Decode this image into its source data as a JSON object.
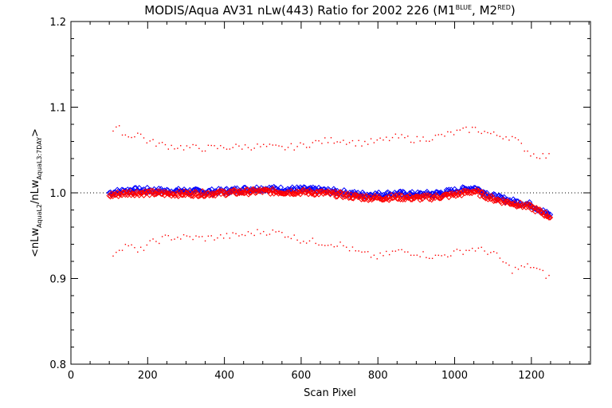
{
  "chart_data": {
    "type": "scatter",
    "title": {
      "main": "MODIS/Aqua AV31 nLw(443) Ratio for 2002 226 (M1",
      "sup1": "BLUE",
      "mid": ", M2",
      "sup2": "RED",
      "end": ")"
    },
    "xlabel": "Scan Pixel",
    "ylabel": {
      "a": "<nLw",
      "sub1": "AquaL2",
      "b": "/nLw",
      "sub2": "AquaL3:7DAY",
      "c": ">"
    },
    "xlim": [
      0,
      1354
    ],
    "ylim": [
      0.8,
      1.2
    ],
    "x_ticks": [
      0,
      200,
      400,
      600,
      800,
      1000,
      1200
    ],
    "y_ticks": [
      0.8,
      0.9,
      1.0,
      1.1,
      1.2
    ],
    "x_tick_labels": [
      "0",
      "200",
      "400",
      "600",
      "800",
      "1000",
      "1200"
    ],
    "y_tick_labels": [
      "0.8",
      "0.9",
      "1.0",
      "1.1",
      "1.2"
    ],
    "reference_line": 1.0,
    "colors": {
      "blue": "#0000ff",
      "red": "#ff0000",
      "upper_band": "#ff0000",
      "lower_band": "#ff0000",
      "axes": "#000000"
    },
    "series": [
      {
        "color": "blue",
        "marker": "diamond",
        "x": [
          100,
          150,
          200,
          250,
          300,
          350,
          400,
          450,
          500,
          550,
          600,
          650,
          700,
          750,
          800,
          850,
          900,
          950,
          1000,
          1050,
          1100,
          1150,
          1200,
          1250
        ],
        "y": [
          1.0,
          1.003,
          1.003,
          1.002,
          1.002,
          1.001,
          1.002,
          1.004,
          1.005,
          1.004,
          1.004,
          1.003,
          1.001,
          0.998,
          0.998,
          0.999,
          0.998,
          0.999,
          1.002,
          1.006,
          0.996,
          0.99,
          0.986,
          0.973
        ]
      },
      {
        "color": "red",
        "marker": "diamond",
        "x": [
          100,
          150,
          200,
          250,
          300,
          350,
          400,
          450,
          500,
          550,
          600,
          650,
          700,
          750,
          800,
          850,
          900,
          950,
          1000,
          1050,
          1100,
          1150,
          1200,
          1250
        ],
        "y": [
          0.997,
          1.0,
          1.0,
          0.999,
          0.999,
          0.999,
          1.0,
          1.001,
          1.002,
          1.001,
          1.001,
          1.0,
          0.998,
          0.995,
          0.994,
          0.995,
          0.994,
          0.995,
          0.998,
          1.002,
          0.993,
          0.988,
          0.983,
          0.972
        ]
      },
      {
        "color": "upper_band",
        "marker": "dot",
        "x": [
          100,
          125,
          150,
          175,
          200,
          250,
          300,
          350,
          400,
          450,
          500,
          550,
          600,
          650,
          700,
          750,
          800,
          850,
          900,
          950,
          1000,
          1050,
          1100,
          1150,
          1200,
          1250
        ],
        "y": [
          1.07,
          1.075,
          1.065,
          1.07,
          1.06,
          1.055,
          1.053,
          1.052,
          1.053,
          1.054,
          1.054,
          1.052,
          1.055,
          1.06,
          1.062,
          1.058,
          1.06,
          1.065,
          1.062,
          1.065,
          1.07,
          1.075,
          1.068,
          1.065,
          1.045,
          1.042
        ]
      },
      {
        "color": "lower_band",
        "marker": "dot",
        "x": [
          100,
          125,
          150,
          175,
          200,
          250,
          300,
          350,
          400,
          450,
          500,
          550,
          600,
          650,
          700,
          750,
          800,
          850,
          900,
          950,
          1000,
          1050,
          1100,
          1150,
          1200,
          1250
        ],
        "y": [
          0.925,
          0.935,
          0.94,
          0.93,
          0.94,
          0.948,
          0.948,
          0.947,
          0.949,
          0.951,
          0.955,
          0.953,
          0.945,
          0.942,
          0.94,
          0.93,
          0.925,
          0.932,
          0.93,
          0.925,
          0.93,
          0.935,
          0.93,
          0.91,
          0.915,
          0.9
        ]
      }
    ]
  }
}
